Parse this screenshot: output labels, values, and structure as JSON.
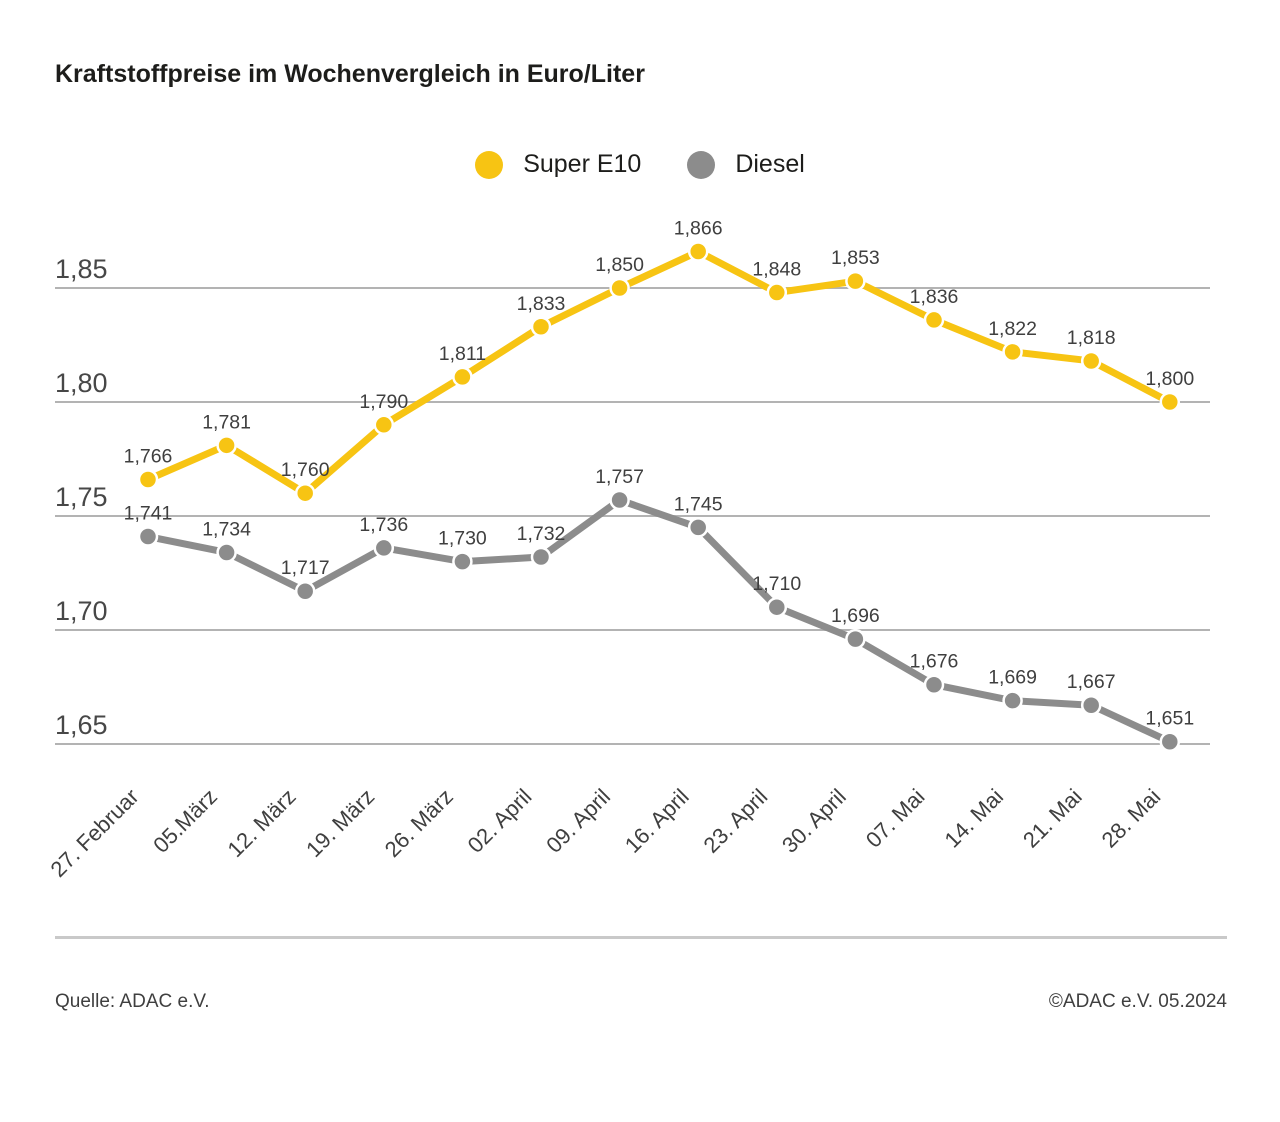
{
  "title": "Kraftstoffpreise im Wochenvergleich in Euro/Liter",
  "legend": {
    "items": [
      {
        "label": "Super E10",
        "color": "#F7C413"
      },
      {
        "label": "Diesel",
        "color": "#8C8C8C"
      }
    ]
  },
  "footer": {
    "source": "Quelle: ADAC e.V.",
    "copyright": "©ADAC e.V. 05.2024"
  },
  "chart_data": {
    "type": "line",
    "title": "Kraftstoffpreise im Wochenvergleich in Euro/Liter",
    "unit": "Euro/Liter",
    "categories": [
      "27. Februar",
      "05.März",
      "12. März",
      "19. März",
      "26. März",
      "02. April",
      "09. April",
      "16. April",
      "23. April",
      "30. April",
      "07. Mai",
      "14. Mai",
      "21. Mai",
      "28. Mai"
    ],
    "series": [
      {
        "name": "Super E10",
        "color": "#F7C413",
        "values": [
          1.766,
          1.781,
          1.76,
          1.79,
          1.811,
          1.833,
          1.85,
          1.866,
          1.848,
          1.853,
          1.836,
          1.822,
          1.818,
          1.8
        ]
      },
      {
        "name": "Diesel",
        "color": "#8C8C8C",
        "values": [
          1.741,
          1.734,
          1.717,
          1.736,
          1.73,
          1.732,
          1.757,
          1.745,
          1.71,
          1.696,
          1.676,
          1.669,
          1.667,
          1.651
        ]
      }
    ],
    "yticks": [
      1.85,
      1.8,
      1.75,
      1.7,
      1.65
    ],
    "ylim": [
      1.62,
      1.88
    ],
    "grid": true,
    "legend_position": "top-center",
    "decimal_separator": ",",
    "gridline_color": "#B3B3B3",
    "label_color": "#3F3F3F"
  }
}
